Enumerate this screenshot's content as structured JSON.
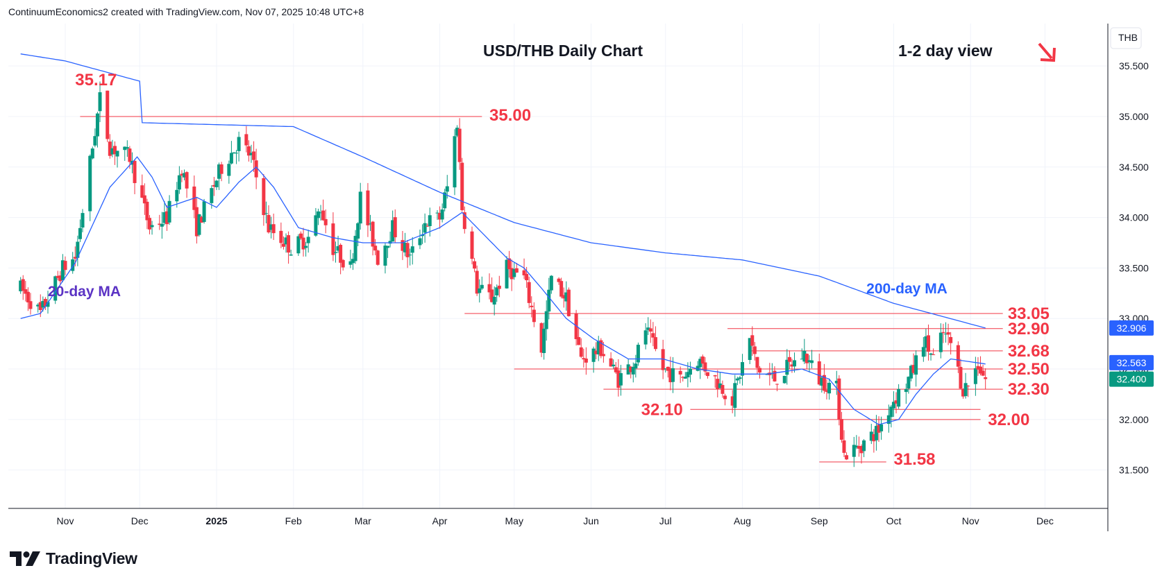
{
  "header": {
    "attribution": "ContinuumEconomics2 created with TradingView.com, Nov 07, 2025 10:48 UTC+8"
  },
  "footer": {
    "brand": "TradingView"
  },
  "chart_data": {
    "type": "candlestick",
    "title": "USD/THB Daily Chart",
    "view_label": "1-2 day view",
    "view_direction": "down",
    "currency_label": "THB",
    "y_ticks": [
      "35.500",
      "35.000",
      "34.500",
      "34.000",
      "33.500",
      "33.000",
      "32.500",
      "32.000",
      "31.500"
    ],
    "x_ticks": [
      "Nov",
      "Dec",
      "2025",
      "Feb",
      "Mar",
      "Apr",
      "May",
      "Jun",
      "Jul",
      "Aug",
      "Sep",
      "Oct",
      "Nov",
      "Dec"
    ],
    "ylim": [
      31.12,
      35.92
    ],
    "grid": true,
    "price_badges": [
      {
        "label": "32.906",
        "value": 32.906,
        "color": "#2962ff"
      },
      {
        "label": "32.563",
        "value": 32.563,
        "color": "#2962ff"
      },
      {
        "label": "32.400",
        "value": 32.4,
        "color": "#089981"
      }
    ],
    "levels": [
      {
        "label": "35.17",
        "value": 35.17,
        "line": false
      },
      {
        "label": "35.00",
        "value": 35.0,
        "line": true
      },
      {
        "label": "33.05",
        "value": 33.05,
        "line": true
      },
      {
        "label": "32.90",
        "value": 32.9,
        "line": true
      },
      {
        "label": "32.68",
        "value": 32.68,
        "line": true
      },
      {
        "label": "32.50",
        "value": 32.5,
        "line": true
      },
      {
        "label": "32.30",
        "value": 32.3,
        "line": true
      },
      {
        "label": "32.10",
        "value": 32.1,
        "line": true
      },
      {
        "label": "32.00",
        "value": 32.0,
        "line": true
      },
      {
        "label": "31.58",
        "value": 31.58,
        "line": true
      }
    ],
    "ma_labels": [
      {
        "label": "20-day MA",
        "color": "#5b33c4"
      },
      {
        "label": "200-day MA",
        "color": "#2962ff"
      }
    ],
    "colors": {
      "up": "#089981",
      "down": "#f23645",
      "ma": "#2962ff",
      "level": "#f23645"
    },
    "price_anchors": [
      [
        "Oct 14",
        33.3
      ],
      [
        "Oct 22",
        33.05
      ],
      [
        "Oct 31",
        33.5
      ],
      [
        "Nov 5",
        33.6
      ],
      [
        "Nov 12",
        34.7
      ],
      [
        "Nov 15",
        35.17
      ],
      [
        "Nov 19",
        34.7
      ],
      [
        "Nov 27",
        34.6
      ],
      [
        "Dec 5",
        33.9
      ],
      [
        "Dec 12",
        34.0
      ],
      [
        "Dec 18",
        34.5
      ],
      [
        "Dec 24",
        33.9
      ],
      [
        "Jan 3",
        34.5
      ],
      [
        "Jan 10",
        34.75
      ],
      [
        "Jan 15",
        34.6
      ],
      [
        "Jan 22",
        33.9
      ],
      [
        "Jan 31",
        33.7
      ],
      [
        "Feb 7",
        33.8
      ],
      [
        "Feb 12",
        34.1
      ],
      [
        "Feb 17",
        33.7
      ],
      [
        "Feb 24",
        33.5
      ],
      [
        "Feb 28",
        34.2
      ],
      [
        "Mar 7",
        33.6
      ],
      [
        "Mar 13",
        33.9
      ],
      [
        "Mar 20",
        33.6
      ],
      [
        "Mar 26",
        33.95
      ],
      [
        "Apr 1",
        34.0
      ],
      [
        "Apr 4",
        34.3
      ],
      [
        "Apr 8",
        34.95
      ],
      [
        "Apr 10",
        34.1
      ],
      [
        "Apr 16",
        33.3
      ],
      [
        "Apr 22",
        33.2
      ],
      [
        "Apr 28",
        33.5
      ],
      [
        "May 5",
        33.4
      ],
      [
        "May 12",
        32.7
      ],
      [
        "May 16",
        33.4
      ],
      [
        "May 22",
        33.2
      ],
      [
        "May 28",
        32.6
      ],
      [
        "Jun 5",
        32.7
      ],
      [
        "Jun 12",
        32.4
      ],
      [
        "Jun 19",
        32.6
      ],
      [
        "Jun 23",
        32.9
      ],
      [
        "Jun 30",
        32.5
      ],
      [
        "Jul 7",
        32.4
      ],
      [
        "Jul 14",
        32.6
      ],
      [
        "Jul 21",
        32.4
      ],
      [
        "Jul 28",
        32.2
      ],
      [
        "Aug 4",
        32.8
      ],
      [
        "Aug 7",
        32.5
      ],
      [
        "Aug 14",
        32.4
      ],
      [
        "Aug 21",
        32.55
      ],
      [
        "Aug 26",
        32.65
      ],
      [
        "Sep 1",
        32.4
      ],
      [
        "Sep 8",
        32.3
      ],
      [
        "Sep 11",
        31.65
      ],
      [
        "Sep 18",
        31.75
      ],
      [
        "Sep 25",
        31.9
      ],
      [
        "Oct 1",
        32.2
      ],
      [
        "Oct 6",
        32.35
      ],
      [
        "Oct 9",
        32.5
      ],
      [
        "Oct 13",
        32.8
      ],
      [
        "Oct 17",
        32.6
      ],
      [
        "Oct 21",
        32.85
      ],
      [
        "Oct 24",
        32.75
      ],
      [
        "Oct 29",
        32.3
      ],
      [
        "Oct 31",
        32.35
      ],
      [
        "Nov 4",
        32.55
      ],
      [
        "Nov 7",
        32.4
      ]
    ],
    "ma20_anchors": [
      [
        "Oct 14",
        33.0
      ],
      [
        "Oct 22",
        33.05
      ],
      [
        "Oct 29",
        33.3
      ],
      [
        "Nov 5",
        33.55
      ],
      [
        "Nov 19",
        34.3
      ],
      [
        "Nov 30",
        34.6
      ],
      [
        "Dec 6",
        34.4
      ],
      [
        "Dec 12",
        34.1
      ],
      [
        "Dec 24",
        34.2
      ],
      [
        "Jan 1",
        34.1
      ],
      [
        "Jan 10",
        34.35
      ],
      [
        "Jan 17",
        34.5
      ],
      [
        "Jan 24",
        34.3
      ],
      [
        "Feb 3",
        33.9
      ],
      [
        "Feb 17",
        33.8
      ],
      [
        "Mar 1",
        33.75
      ],
      [
        "Mar 17",
        33.75
      ],
      [
        "Apr 1",
        33.9
      ],
      [
        "Apr 10",
        34.05
      ],
      [
        "Apr 20",
        33.8
      ],
      [
        "Apr 28",
        33.6
      ],
      [
        "May 5",
        33.5
      ],
      [
        "May 12",
        33.3
      ],
      [
        "May 22",
        33.0
      ],
      [
        "Jun 2",
        32.8
      ],
      [
        "Jun 16",
        32.6
      ],
      [
        "Jun 30",
        32.6
      ],
      [
        "Jul 14",
        32.5
      ],
      [
        "Jul 28",
        32.45
      ],
      [
        "Aug 11",
        32.45
      ],
      [
        "Aug 25",
        32.5
      ],
      [
        "Sep 5",
        32.4
      ],
      [
        "Sep 15",
        32.1
      ],
      [
        "Sep 25",
        31.95
      ],
      [
        "Oct 3",
        32.0
      ],
      [
        "Oct 10",
        32.25
      ],
      [
        "Oct 17",
        32.45
      ],
      [
        "Oct 24",
        32.6
      ],
      [
        "Nov 7",
        32.55
      ]
    ],
    "ma200_anchors": [
      [
        "Oct 14",
        35.62
      ],
      [
        "Nov 1",
        35.55
      ],
      [
        "Dec 1",
        35.35
      ],
      [
        "Jan 1",
        35.15
      ],
      [
        "Feb 1",
        34.9
      ],
      [
        "Mar 1",
        34.6
      ],
      [
        "Apr 1",
        34.25
      ],
      [
        "May 1",
        33.95
      ],
      [
        "Jun 1",
        33.75
      ],
      [
        "Jul 1",
        33.65
      ],
      [
        "Aug 1",
        33.58
      ],
      [
        "Sep 1",
        33.42
      ],
      [
        "Oct 1",
        33.15
      ],
      [
        "Nov 7",
        32.906
      ]
    ]
  }
}
